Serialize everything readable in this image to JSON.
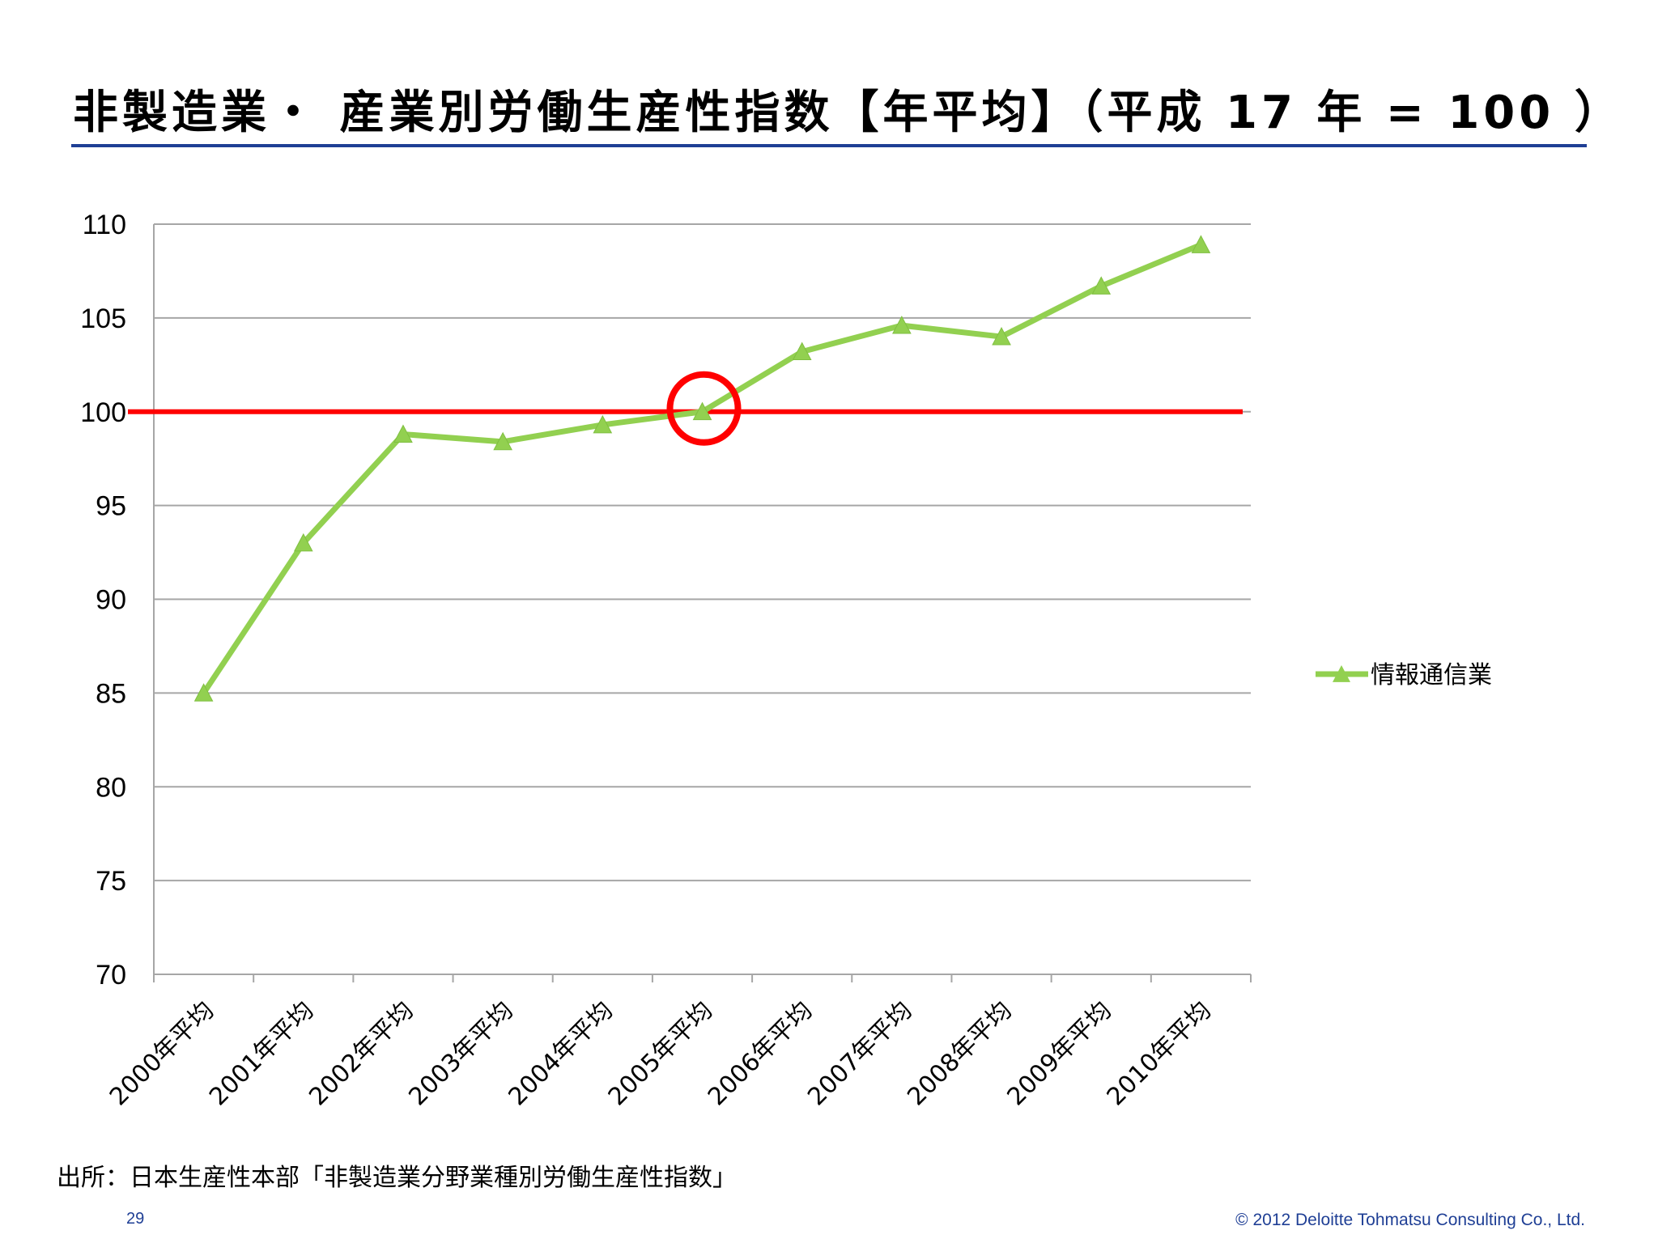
{
  "slide": {
    "title": "非製造業・ 産業別労働生産性指数【年平均】（平成 17 年 = 100 ）",
    "source": "出所：日本生産性本部「非製造業分野業種別労働生産性指数」",
    "page_number": "29",
    "copyright": "© 2012 Deloitte Tohmatsu Consulting Co., Ltd."
  },
  "colors": {
    "series": "#92d050",
    "reference_line": "#ff0000",
    "highlight_circle": "#ff0000",
    "gridline": "#a6a6a6",
    "title_rule": "#1f3f95",
    "footer_text": "#1f3f95"
  },
  "chart_data": {
    "type": "line",
    "title": "",
    "xlabel": "",
    "ylabel": "",
    "categories": [
      "2000年平均",
      "2001年平均",
      "2002年平均",
      "2003年平均",
      "2004年平均",
      "2005年平均",
      "2006年平均",
      "2007年平均",
      "2008年平均",
      "2009年平均",
      "2010年平均"
    ],
    "series": [
      {
        "name": "情報通信業",
        "marker": "triangle",
        "values": [
          85.0,
          93.0,
          98.8,
          98.4,
          99.3,
          100.0,
          103.2,
          104.6,
          104.0,
          106.7,
          108.9
        ]
      }
    ],
    "ylim": [
      70,
      110
    ],
    "yticks": [
      110,
      105,
      100,
      95,
      90,
      85,
      80,
      75,
      70
    ],
    "grid": "horizontal",
    "legend_position": "right",
    "reference_line": {
      "value": 100
    },
    "highlight": {
      "category": "2005年平均",
      "shape": "circle"
    }
  }
}
